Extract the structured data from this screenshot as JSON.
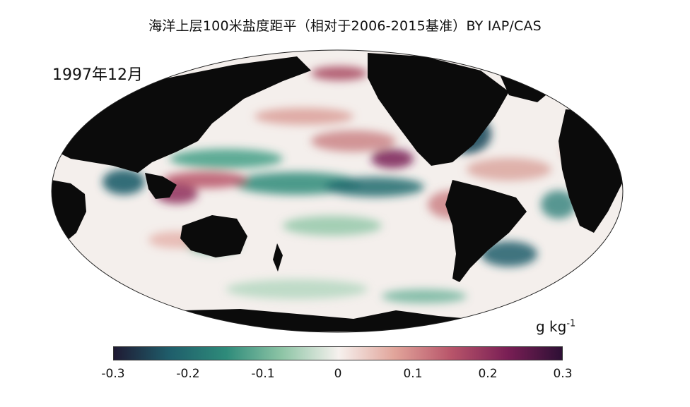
{
  "title": "海洋上层100米盐度距平（相对于2006-2015基准）BY IAP/CAS",
  "date_label": "1997年12月",
  "colorbar": {
    "unit_main": "g kg",
    "unit_sup": "-1",
    "min": -0.3,
    "max": 0.3,
    "tick_labels": [
      "-0.3",
      "-0.2",
      "-0.1",
      "0",
      "0.1",
      "0.2",
      "0.3"
    ],
    "tick_values": [
      -0.3,
      -0.2,
      -0.1,
      0,
      0.1,
      0.2,
      0.3
    ],
    "colors": [
      "#1f1a33",
      "#1f5e6b",
      "#2e8b7a",
      "#8ec5a6",
      "#f6f1ee",
      "#e1a49a",
      "#b8556a",
      "#7a1f55",
      "#2c0f34"
    ]
  },
  "map": {
    "projection": "Mollweide",
    "land_color": "#0b0b0b",
    "ocean_neutral": "#f4efec"
  }
}
